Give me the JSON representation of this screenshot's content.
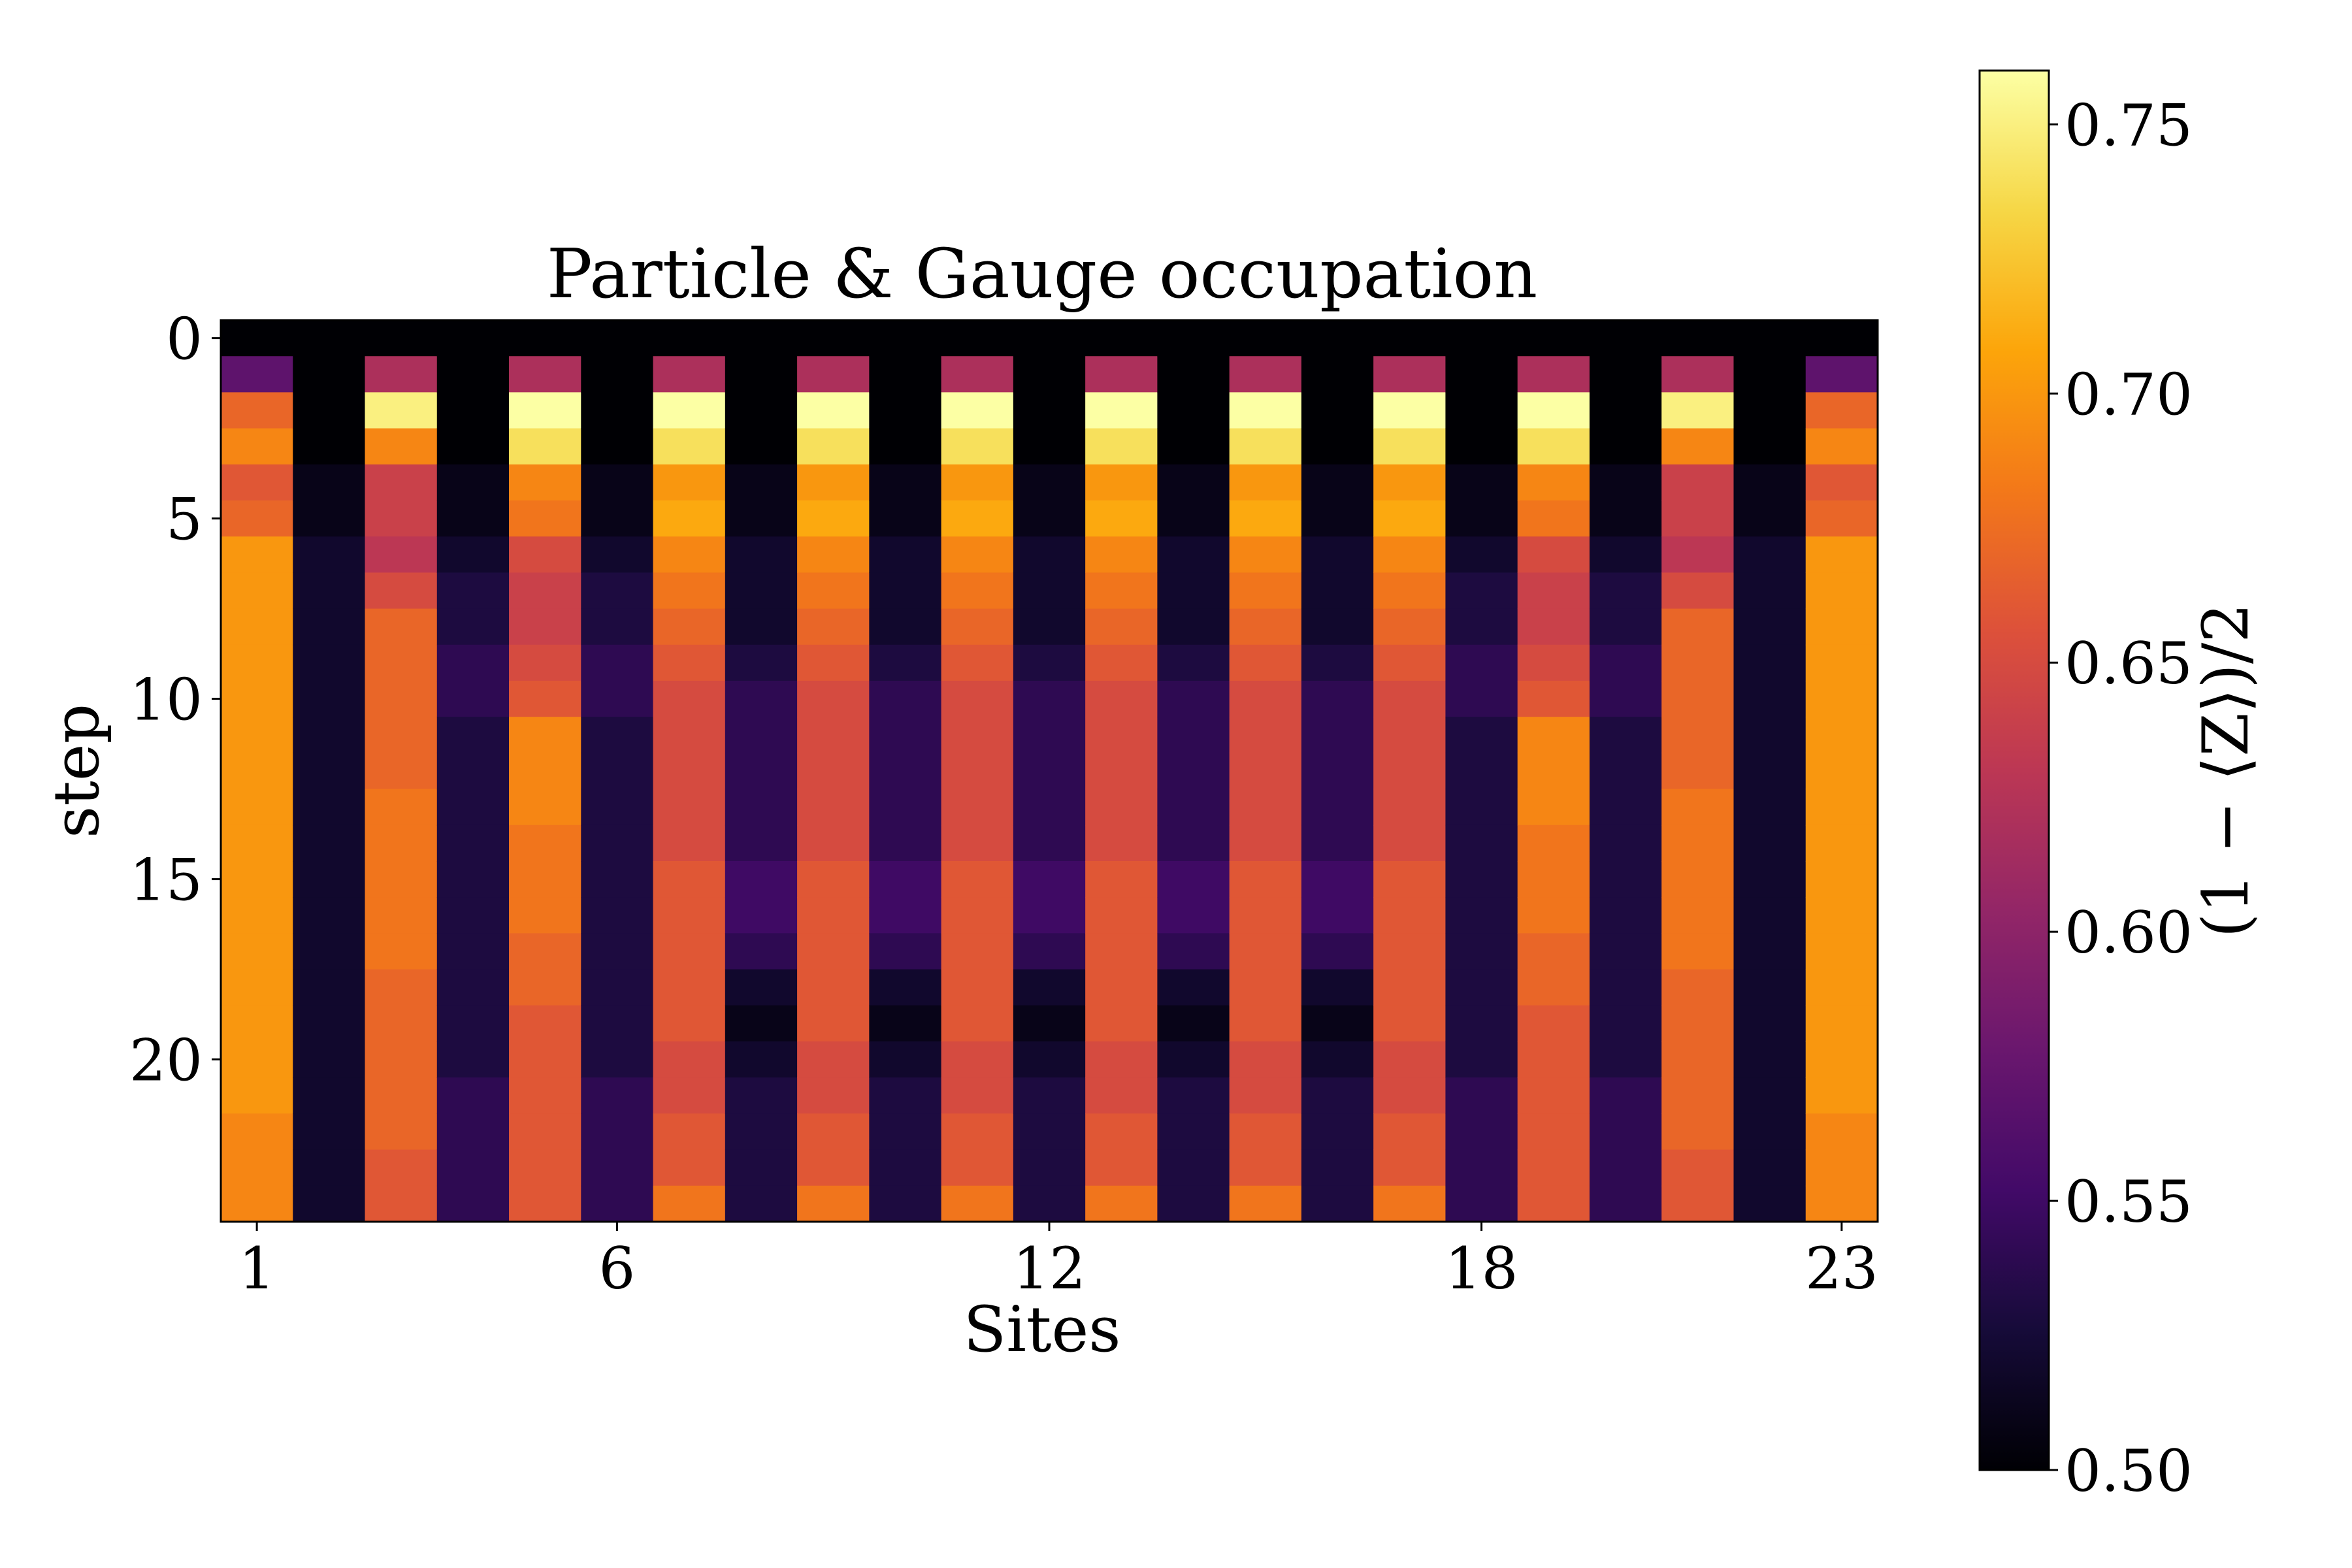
{
  "chart_data": {
    "type": "heatmap",
    "title": "Particle & Gauge occupation",
    "xlabel": "Sites",
    "ylabel": "step",
    "colorbar_label": "(1 − ⟨Z⟩)/2",
    "colormap": "inferno",
    "vmin": 0.5,
    "vmax": 0.76,
    "n_sites": 23,
    "n_steps": 25,
    "x_ticks": [
      1,
      6,
      12,
      18,
      23
    ],
    "x_tick_labels": [
      "1",
      "6",
      "12",
      "18",
      "23"
    ],
    "y_ticks": [
      0,
      5,
      10,
      15,
      20
    ],
    "y_tick_labels": [
      "0",
      "5",
      "10",
      "15",
      "20"
    ],
    "colorbar_ticks": [
      0.5,
      0.55,
      0.6,
      0.65,
      0.7,
      0.75
    ],
    "colorbar_tick_labels": [
      "0.50",
      "0.55",
      "0.60",
      "0.65",
      "0.70",
      "0.75"
    ],
    "column_profiles": {
      "edge": [
        0.5,
        0.57,
        0.67,
        0.69,
        0.66,
        0.67,
        0.7,
        0.7,
        0.7,
        0.7,
        0.7,
        0.7,
        0.7,
        0.7,
        0.7,
        0.7,
        0.7,
        0.7,
        0.7,
        0.7,
        0.7,
        0.7,
        0.69,
        0.69,
        0.69
      ],
      "inner_odd": [
        0.5,
        0.62,
        0.75,
        0.69,
        0.64,
        0.64,
        0.63,
        0.65,
        0.67,
        0.67,
        0.67,
        0.67,
        0.67,
        0.68,
        0.68,
        0.68,
        0.68,
        0.68,
        0.67,
        0.67,
        0.67,
        0.67,
        0.67,
        0.66,
        0.66
      ],
      "mid_odd": [
        0.5,
        0.62,
        0.76,
        0.74,
        0.69,
        0.68,
        0.65,
        0.64,
        0.64,
        0.65,
        0.66,
        0.69,
        0.69,
        0.69,
        0.68,
        0.68,
        0.68,
        0.67,
        0.67,
        0.66,
        0.66,
        0.66,
        0.66,
        0.66,
        0.66
      ],
      "center_odd": [
        0.5,
        0.62,
        0.76,
        0.74,
        0.7,
        0.71,
        0.69,
        0.68,
        0.67,
        0.66,
        0.65,
        0.65,
        0.65,
        0.65,
        0.65,
        0.66,
        0.66,
        0.66,
        0.66,
        0.66,
        0.65,
        0.65,
        0.66,
        0.66,
        0.68
      ],
      "gauge_edge": [
        0.5,
        0.5,
        0.5,
        0.5,
        0.51,
        0.51,
        0.52,
        0.52,
        0.52,
        0.52,
        0.52,
        0.52,
        0.52,
        0.52,
        0.52,
        0.52,
        0.52,
        0.52,
        0.52,
        0.52,
        0.52,
        0.52,
        0.52,
        0.52,
        0.52
      ],
      "gauge_mid": [
        0.5,
        0.5,
        0.5,
        0.5,
        0.51,
        0.51,
        0.52,
        0.53,
        0.53,
        0.54,
        0.54,
        0.53,
        0.53,
        0.53,
        0.53,
        0.53,
        0.53,
        0.53,
        0.53,
        0.53,
        0.53,
        0.54,
        0.54,
        0.54,
        0.54
      ],
      "gauge_center": [
        0.5,
        0.5,
        0.5,
        0.5,
        0.51,
        0.51,
        0.52,
        0.52,
        0.52,
        0.53,
        0.54,
        0.54,
        0.54,
        0.54,
        0.54,
        0.55,
        0.55,
        0.54,
        0.52,
        0.51,
        0.52,
        0.53,
        0.53,
        0.53,
        0.53
      ]
    },
    "site_profile_map": [
      "edge",
      "gauge_edge",
      "inner_odd",
      "gauge_mid",
      "mid_odd",
      "gauge_mid",
      "center_odd",
      "gauge_center",
      "center_odd",
      "gauge_center",
      "center_odd",
      "gauge_center",
      "center_odd",
      "gauge_center",
      "center_odd",
      "gauge_center",
      "center_odd",
      "gauge_mid",
      "mid_odd",
      "gauge_mid",
      "inner_odd",
      "gauge_edge",
      "edge"
    ]
  }
}
